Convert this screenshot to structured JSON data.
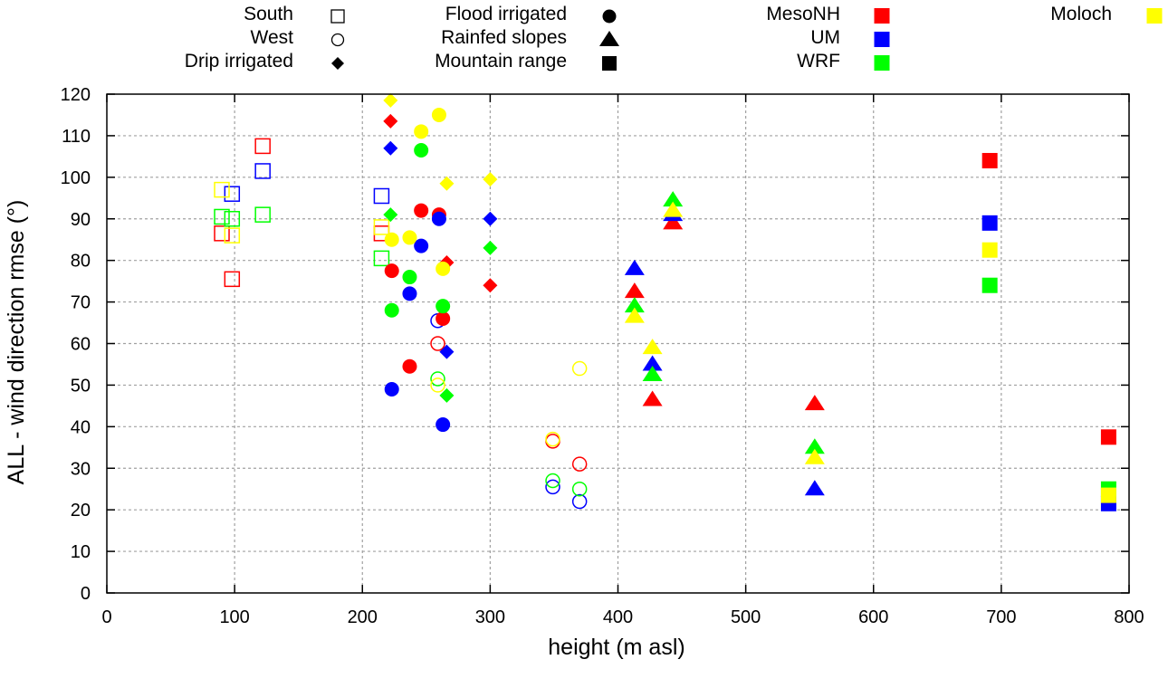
{
  "chart_data": {
    "type": "scatter",
    "title": "",
    "xlabel": "height (m asl)",
    "ylabel": "ALL - wind direction rmse (°)",
    "xlim": [
      0,
      800
    ],
    "ylim": [
      0,
      120
    ],
    "xticks": [
      0,
      100,
      200,
      300,
      400,
      500,
      600,
      700,
      800
    ],
    "yticks": [
      0,
      10,
      20,
      30,
      40,
      50,
      60,
      70,
      80,
      90,
      100,
      110,
      120
    ],
    "grid": true,
    "legend_placement": "top-outside",
    "legend_shapes": [
      {
        "label": "South",
        "marker": "open-square"
      },
      {
        "label": "West",
        "marker": "open-circle"
      },
      {
        "label": "Drip irrigated",
        "marker": "filled-diamond"
      },
      {
        "label": "Flood irrigated",
        "marker": "filled-circle"
      },
      {
        "label": "Rainfed slopes",
        "marker": "filled-triangle"
      },
      {
        "label": "Mountain range",
        "marker": "filled-square"
      }
    ],
    "legend_models": [
      {
        "label": "MesoNH",
        "color": "#ff0000"
      },
      {
        "label": "UM",
        "color": "#0000ff"
      },
      {
        "label": "WRF",
        "color": "#00ff00"
      },
      {
        "label": "Moloch",
        "color": "#ffff00"
      }
    ],
    "series": [
      {
        "name": "South - MesoNH",
        "marker": "open-square",
        "color": "#ff0000",
        "points": [
          [
            90,
            86.5
          ],
          [
            98,
            75.5
          ],
          [
            122,
            107.5
          ],
          [
            215,
            86.5
          ]
        ]
      },
      {
        "name": "South - UM",
        "marker": "open-square",
        "color": "#0000ff",
        "points": [
          [
            98,
            96
          ],
          [
            122,
            101.5
          ],
          [
            215,
            95.5
          ]
        ]
      },
      {
        "name": "South - WRF",
        "marker": "open-square",
        "color": "#00ff00",
        "points": [
          [
            90,
            90.5
          ],
          [
            98,
            90
          ],
          [
            122,
            91
          ],
          [
            215,
            80.5
          ]
        ]
      },
      {
        "name": "South - Moloch",
        "marker": "open-square",
        "color": "#ffff00",
        "points": [
          [
            90,
            97
          ],
          [
            98,
            86
          ],
          [
            215,
            88
          ]
        ]
      },
      {
        "name": "West - MesoNH",
        "marker": "open-circle",
        "color": "#ff0000",
        "points": [
          [
            259,
            60
          ],
          [
            349,
            36.5
          ],
          [
            370,
            31
          ]
        ]
      },
      {
        "name": "West - UM",
        "marker": "open-circle",
        "color": "#0000ff",
        "points": [
          [
            259,
            65.5
          ],
          [
            349,
            25.5
          ],
          [
            370,
            22
          ]
        ]
      },
      {
        "name": "West - WRF",
        "marker": "open-circle",
        "color": "#00ff00",
        "points": [
          [
            259,
            51.5
          ],
          [
            349,
            27
          ],
          [
            370,
            25
          ]
        ]
      },
      {
        "name": "West - Moloch",
        "marker": "open-circle",
        "color": "#ffff00",
        "points": [
          [
            259,
            50
          ],
          [
            349,
            37
          ],
          [
            370,
            54
          ]
        ]
      },
      {
        "name": "Drip irrigated - MesoNH",
        "marker": "filled-diamond",
        "color": "#ff0000",
        "points": [
          [
            222,
            113.5
          ],
          [
            266,
            79.5
          ],
          [
            300,
            74
          ]
        ]
      },
      {
        "name": "Drip irrigated - UM",
        "marker": "filled-diamond",
        "color": "#0000ff",
        "points": [
          [
            222,
            107
          ],
          [
            266,
            58
          ],
          [
            300,
            90
          ]
        ]
      },
      {
        "name": "Drip irrigated - WRF",
        "marker": "filled-diamond",
        "color": "#00ff00",
        "points": [
          [
            222,
            91
          ],
          [
            266,
            47.5
          ],
          [
            300,
            83
          ]
        ]
      },
      {
        "name": "Drip irrigated - Moloch",
        "marker": "filled-diamond",
        "color": "#ffff00",
        "points": [
          [
            222,
            118.5
          ],
          [
            266,
            98.5
          ],
          [
            300,
            99.5
          ]
        ]
      },
      {
        "name": "Flood irrigated - MesoNH",
        "marker": "filled-circle",
        "color": "#ff0000",
        "points": [
          [
            223,
            77.5
          ],
          [
            237,
            54.5
          ],
          [
            246,
            92
          ],
          [
            260,
            91
          ],
          [
            263,
            66
          ]
        ]
      },
      {
        "name": "Flood irrigated - UM",
        "marker": "filled-circle",
        "color": "#0000ff",
        "points": [
          [
            223,
            49
          ],
          [
            237,
            72
          ],
          [
            246,
            83.5
          ],
          [
            260,
            90
          ],
          [
            263,
            40.5
          ]
        ]
      },
      {
        "name": "Flood irrigated - WRF",
        "marker": "filled-circle",
        "color": "#00ff00",
        "points": [
          [
            223,
            68
          ],
          [
            237,
            76
          ],
          [
            246,
            106.5
          ],
          [
            263,
            69
          ]
        ]
      },
      {
        "name": "Flood irrigated - Moloch",
        "marker": "filled-circle",
        "color": "#ffff00",
        "points": [
          [
            223,
            85
          ],
          [
            237,
            85.5
          ],
          [
            246,
            111
          ],
          [
            260,
            115
          ],
          [
            263,
            78
          ]
        ]
      },
      {
        "name": "Rainfed slopes - MesoNH",
        "marker": "filled-triangle",
        "color": "#ff0000",
        "points": [
          [
            413,
            72.5
          ],
          [
            427,
            46.5
          ],
          [
            443,
            89
          ],
          [
            554,
            45.5
          ]
        ]
      },
      {
        "name": "Rainfed slopes - UM",
        "marker": "filled-triangle",
        "color": "#0000ff",
        "points": [
          [
            413,
            78
          ],
          [
            427,
            55
          ],
          [
            443,
            91
          ],
          [
            554,
            25
          ]
        ]
      },
      {
        "name": "Rainfed slopes - WRF",
        "marker": "filled-triangle",
        "color": "#00ff00",
        "points": [
          [
            413,
            69
          ],
          [
            427,
            52.5
          ],
          [
            443,
            94.5
          ],
          [
            554,
            35
          ]
        ]
      },
      {
        "name": "Rainfed slopes - Moloch",
        "marker": "filled-triangle",
        "color": "#ffff00",
        "points": [
          [
            413,
            66.5
          ],
          [
            427,
            59
          ],
          [
            443,
            92
          ],
          [
            554,
            32.5
          ]
        ]
      },
      {
        "name": "Mountain range - MesoNH",
        "marker": "filled-square",
        "color": "#ff0000",
        "points": [
          [
            691,
            104
          ],
          [
            784,
            37.5
          ]
        ]
      },
      {
        "name": "Mountain range - UM",
        "marker": "filled-square",
        "color": "#0000ff",
        "points": [
          [
            691,
            89
          ],
          [
            784,
            21.5
          ]
        ]
      },
      {
        "name": "Mountain range - WRF",
        "marker": "filled-square",
        "color": "#00ff00",
        "points": [
          [
            691,
            74
          ],
          [
            784,
            25
          ]
        ]
      },
      {
        "name": "Mountain range - Moloch",
        "marker": "filled-square",
        "color": "#ffff00",
        "points": [
          [
            691,
            82.5
          ],
          [
            784,
            23.5
          ]
        ]
      }
    ]
  }
}
